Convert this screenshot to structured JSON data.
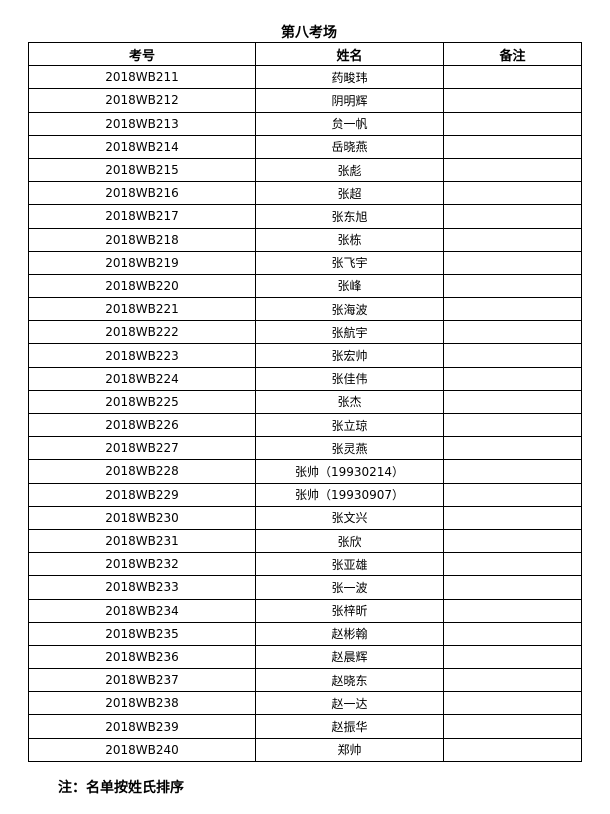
{
  "title": "第八考场",
  "headers": [
    "考号",
    "姓名",
    "备注"
  ],
  "rows": [
    [
      "2018WB211",
      "药畯玮",
      ""
    ],
    [
      "2018WB212",
      "阴明辉",
      ""
    ],
    [
      "2018WB213",
      "贠一帆",
      ""
    ],
    [
      "2018WB214",
      "岳晓燕",
      ""
    ],
    [
      "2018WB215",
      "张彪",
      ""
    ],
    [
      "2018WB216",
      "张超",
      ""
    ],
    [
      "2018WB217",
      "张东旭",
      ""
    ],
    [
      "2018WB218",
      "张栋",
      ""
    ],
    [
      "2018WB219",
      "张飞宇",
      ""
    ],
    [
      "2018WB220",
      "张峰",
      ""
    ],
    [
      "2018WB221",
      "张海波",
      ""
    ],
    [
      "2018WB222",
      "张航宇",
      ""
    ],
    [
      "2018WB223",
      "张宏帅",
      ""
    ],
    [
      "2018WB224",
      "张佳伟",
      ""
    ],
    [
      "2018WB225",
      "张杰",
      ""
    ],
    [
      "2018WB226",
      "张立琼",
      ""
    ],
    [
      "2018WB227",
      "张灵燕",
      ""
    ],
    [
      "2018WB228",
      "张帅（19930214）",
      ""
    ],
    [
      "2018WB229",
      "张帅（19930907）",
      ""
    ],
    [
      "2018WB230",
      "张文兴",
      ""
    ],
    [
      "2018WB231",
      "张欣",
      ""
    ],
    [
      "2018WB232",
      "张亚雄",
      ""
    ],
    [
      "2018WB233",
      "张一波",
      ""
    ],
    [
      "2018WB234",
      "张梓昕",
      ""
    ],
    [
      "2018WB235",
      "赵彬翰",
      ""
    ],
    [
      "2018WB236",
      "赵晨辉",
      ""
    ],
    [
      "2018WB237",
      "赵晓东",
      ""
    ],
    [
      "2018WB238",
      "赵一达",
      ""
    ],
    [
      "2018WB239",
      "赵振华",
      ""
    ],
    [
      "2018WB240",
      "郑帅",
      ""
    ]
  ],
  "note": "注：名单按姓氏排序"
}
